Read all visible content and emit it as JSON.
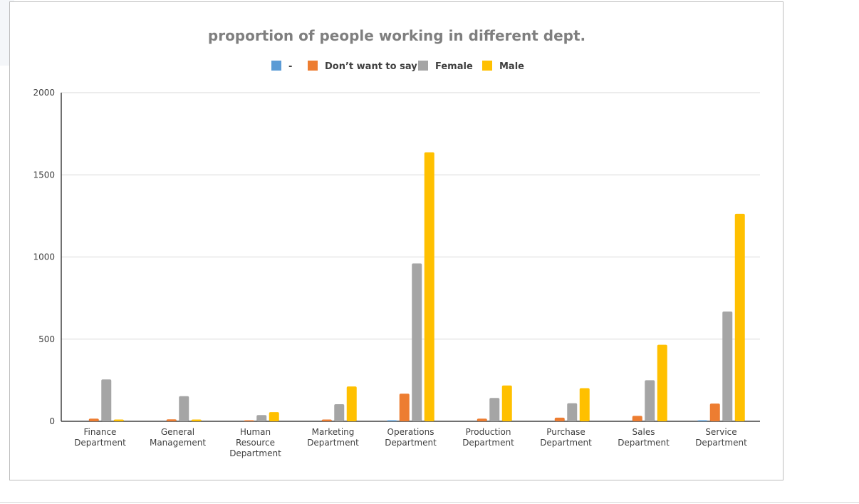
{
  "chart_data": {
    "type": "bar",
    "title": "proportion of people working in different dept.",
    "xlabel": "",
    "ylabel": "",
    "ylim": [
      0,
      2000
    ],
    "yticks": [
      0,
      500,
      1000,
      1500,
      2000
    ],
    "grid": true,
    "legend_position": "top",
    "categories": [
      "Finance Department",
      "General Management",
      "Human Resource Department",
      "Marketing Department",
      "Operations Department",
      "Production Department",
      "Purchase Department",
      "Sales Department",
      "Service Department"
    ],
    "series": [
      {
        "name": "-",
        "color": "#5b9bd5",
        "values": [
          0,
          0,
          0,
          0,
          5,
          0,
          0,
          0,
          4
        ]
      },
      {
        "name": "Don’t want to say",
        "color": "#ed7d31",
        "values": [
          16,
          12,
          5,
          11,
          168,
          16,
          22,
          33,
          108
        ]
      },
      {
        "name": "Female",
        "color": "#a5a5a5",
        "values": [
          255,
          153,
          38,
          104,
          961,
          142,
          110,
          250,
          668
        ]
      },
      {
        "name": "Male",
        "color": "#ffc000",
        "values": [
          11,
          11,
          56,
          212,
          1637,
          218,
          202,
          466,
          1263
        ]
      }
    ]
  }
}
